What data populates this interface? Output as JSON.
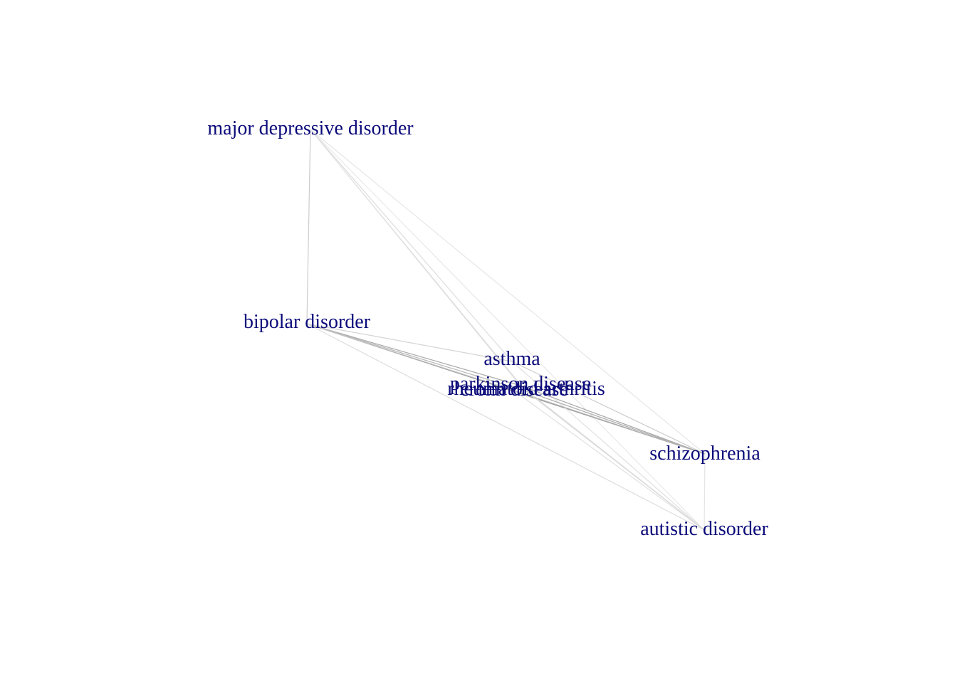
{
  "nodes": [
    {
      "id": "mdd",
      "label": "major depressive disorder"
    },
    {
      "id": "bipolar",
      "label": "bipolar disorder"
    },
    {
      "id": "asthma",
      "label": "asthma"
    },
    {
      "id": "parkinson",
      "label": "parkinson disease"
    },
    {
      "id": "crohn",
      "label": "crohn disease"
    },
    {
      "id": "rheumatoid",
      "label": "rheumatoid arthritis"
    },
    {
      "id": "schizophrenia",
      "label": "schizophrenia"
    },
    {
      "id": "autistic",
      "label": "autistic disorder"
    }
  ],
  "edges": [
    {
      "source": "mdd",
      "target": "bipolar",
      "color": "#cccccc"
    },
    {
      "source": "mdd",
      "target": "asthma",
      "color": "#dddddd"
    },
    {
      "source": "mdd",
      "target": "parkinson",
      "color": "#dadada"
    },
    {
      "source": "mdd",
      "target": "rheumatoid",
      "color": "#e2e2e2"
    },
    {
      "source": "mdd",
      "target": "schizophrenia",
      "color": "#e6e6e6"
    },
    {
      "source": "mdd",
      "target": "autistic",
      "color": "#e8e8e8"
    },
    {
      "source": "bipolar",
      "target": "schizophrenia",
      "color": "#999999"
    },
    {
      "source": "bipolar",
      "target": "parkinson",
      "color": "#aaaaaa"
    },
    {
      "source": "bipolar",
      "target": "rheumatoid",
      "color": "#b8b8b8"
    },
    {
      "source": "bipolar",
      "target": "crohn",
      "color": "#c4c4c4"
    },
    {
      "source": "bipolar",
      "target": "asthma",
      "color": "#d4d4d4"
    },
    {
      "source": "bipolar",
      "target": "autistic",
      "color": "#dddddd"
    },
    {
      "source": "asthma",
      "target": "schizophrenia",
      "color": "#cccccc"
    },
    {
      "source": "asthma",
      "target": "autistic",
      "color": "#e0e0e0"
    },
    {
      "source": "parkinson",
      "target": "schizophrenia",
      "color": "#a8a8a8"
    },
    {
      "source": "parkinson",
      "target": "autistic",
      "color": "#d8d8d8"
    },
    {
      "source": "crohn",
      "target": "schizophrenia",
      "color": "#b4b4b4"
    },
    {
      "source": "crohn",
      "target": "autistic",
      "color": "#e0e0e0"
    },
    {
      "source": "rheumatoid",
      "target": "schizophrenia",
      "color": "#b0b0b0"
    },
    {
      "source": "rheumatoid",
      "target": "autistic",
      "color": "#dcdcdc"
    },
    {
      "source": "schizophrenia",
      "target": "autistic",
      "color": "#e4e4e4"
    }
  ]
}
